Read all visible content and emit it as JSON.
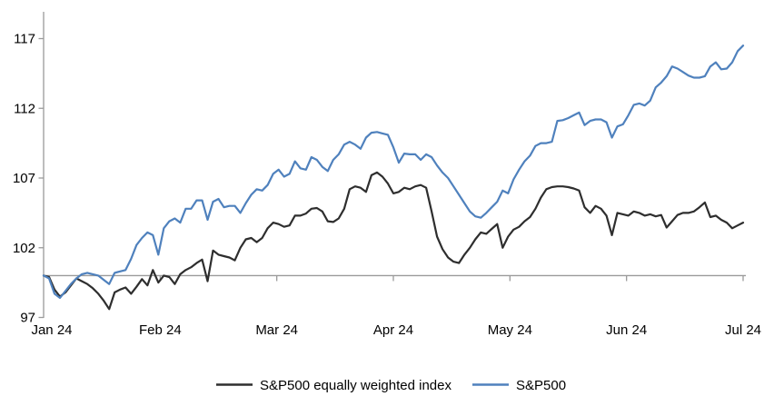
{
  "chart_data": {
    "type": "line",
    "title": "",
    "x_tick_labels": [
      "Jan 24",
      "Feb 24",
      "Mar 24",
      "Apr 24",
      "May 24",
      "Jun 24",
      "Jul 24"
    ],
    "y_ticks": [
      97,
      102,
      107,
      112,
      117
    ],
    "y_range": [
      97,
      117
    ],
    "baseline_value": 100,
    "grid": "single horizontal baseline at 100 with month tick marks",
    "legend_position": "bottom-center",
    "colors": {
      "axis": "#9a9a9a",
      "label_text": "#000000",
      "background": "#ffffff",
      "equal_weight_line": "#2e2e2e",
      "sp500_line": "#4f81bd"
    },
    "series": [
      {
        "name": "S&P500 equally weighted index",
        "color": "#2e2e2e",
        "values": [
          100.0,
          99.9,
          99.0,
          98.5,
          98.8,
          99.3,
          99.8,
          99.6,
          99.4,
          99.1,
          98.7,
          98.2,
          97.6,
          98.8,
          99.0,
          99.15,
          98.7,
          99.2,
          99.75,
          99.3,
          100.4,
          99.5,
          100.0,
          99.9,
          99.4,
          100.1,
          100.4,
          100.6,
          100.9,
          101.15,
          99.6,
          101.8,
          101.5,
          101.4,
          101.3,
          101.1,
          102.0,
          102.6,
          102.7,
          102.4,
          102.7,
          103.4,
          103.8,
          103.7,
          103.5,
          103.6,
          104.3,
          104.3,
          104.45,
          104.8,
          104.85,
          104.6,
          103.9,
          103.85,
          104.1,
          104.8,
          106.2,
          106.4,
          106.3,
          106.0,
          107.2,
          107.4,
          107.1,
          106.6,
          105.9,
          106.0,
          106.3,
          106.2,
          106.4,
          106.5,
          106.3,
          104.6,
          102.8,
          101.9,
          101.3,
          101.0,
          100.9,
          101.5,
          102.0,
          102.6,
          103.1,
          103.0,
          103.35,
          103.7,
          102.0,
          102.8,
          103.3,
          103.5,
          103.9,
          104.2,
          104.8,
          105.6,
          106.2,
          106.35,
          106.4,
          106.4,
          106.35,
          106.25,
          106.1,
          104.9,
          104.5,
          105.0,
          104.8,
          104.3,
          102.9,
          104.5,
          104.4,
          104.3,
          104.6,
          104.5,
          104.3,
          104.4,
          104.25,
          104.35,
          103.45,
          103.9,
          104.35,
          104.5,
          104.5,
          104.6,
          104.9,
          105.25,
          104.2,
          104.3,
          104.0,
          103.8,
          103.4,
          103.6,
          103.8
        ]
      },
      {
        "name": "S&P500",
        "color": "#4f81bd",
        "values": [
          100.0,
          99.8,
          98.7,
          98.4,
          98.9,
          99.4,
          99.8,
          100.1,
          100.2,
          100.1,
          100.0,
          99.7,
          99.4,
          100.2,
          100.3,
          100.4,
          101.2,
          102.2,
          102.7,
          103.1,
          102.9,
          101.5,
          103.4,
          103.9,
          104.1,
          103.8,
          104.8,
          104.8,
          105.4,
          105.4,
          104.0,
          105.3,
          105.5,
          104.9,
          105.0,
          105.0,
          104.5,
          105.2,
          105.8,
          106.2,
          106.1,
          106.5,
          107.3,
          107.6,
          107.1,
          107.3,
          108.2,
          107.7,
          107.6,
          108.5,
          108.3,
          107.8,
          107.5,
          108.3,
          108.7,
          109.4,
          109.6,
          109.4,
          109.1,
          109.9,
          110.25,
          110.3,
          110.2,
          110.1,
          109.2,
          108.1,
          108.75,
          108.7,
          108.7,
          108.3,
          108.7,
          108.5,
          107.9,
          107.4,
          107.0,
          106.4,
          105.8,
          105.2,
          104.6,
          104.25,
          104.15,
          104.5,
          104.9,
          105.3,
          106.1,
          105.9,
          106.9,
          107.6,
          108.2,
          108.6,
          109.3,
          109.5,
          109.5,
          109.6,
          111.1,
          111.15,
          111.3,
          111.5,
          111.7,
          110.8,
          111.1,
          111.2,
          111.2,
          111.0,
          109.9,
          110.7,
          110.85,
          111.5,
          112.25,
          112.35,
          112.2,
          112.55,
          113.5,
          113.85,
          114.3,
          115.0,
          114.85,
          114.6,
          114.35,
          114.2,
          114.2,
          114.3,
          115.0,
          115.3,
          114.8,
          114.85,
          115.3,
          116.1,
          116.5
        ]
      }
    ]
  },
  "legend": {
    "items": [
      {
        "label": "S&P500 equally weighted index",
        "color": "#2e2e2e"
      },
      {
        "label": "S&P500",
        "color": "#4f81bd"
      }
    ]
  }
}
